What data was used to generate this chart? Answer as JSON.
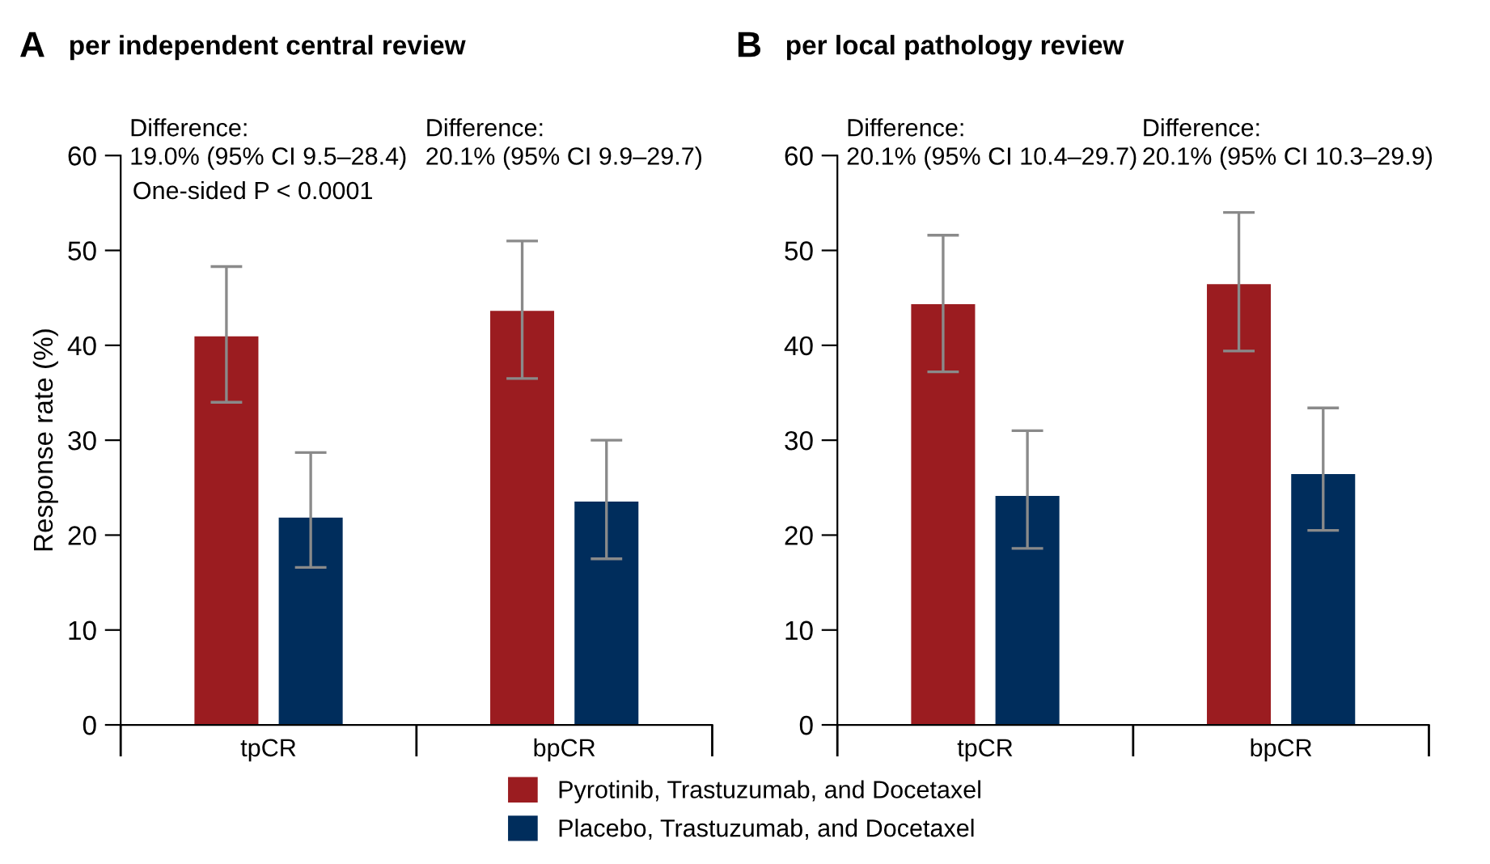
{
  "chart_data": [
    {
      "type": "bar",
      "title": "per independent central review",
      "ylabel": "Response rate (%)",
      "annotations": [
        "A",
        "Difference:\n19.0% (95% CI 9.5–28.4)",
        "Difference:\n20.1% (95% CI 9.9–29.7)",
        "One-sided P < 0.0001"
      ],
      "categories": [
        "tpCR",
        "bpCR"
      ],
      "series": [
        {
          "name": "Pyrotinib, Trastuzumab, and Docetaxel",
          "color": "#9b1c20",
          "values": [
            41.0,
            43.7
          ],
          "errors": [
            [
              34.0,
              48.3
            ],
            [
              36.5,
              51.0
            ]
          ]
        },
        {
          "name": "Placebo, Trastuzumab, and Docetaxel",
          "color": "#002d5c",
          "values": [
            21.9,
            23.6
          ],
          "errors": [
            [
              16.6,
              28.7
            ],
            [
              17.5,
              30.0
            ]
          ]
        }
      ],
      "ylim": [
        0,
        60
      ],
      "yticks": [
        0,
        10,
        20,
        30,
        40,
        50,
        60
      ],
      "grid": false,
      "legend": "bottom"
    },
    {
      "type": "bar",
      "title": "per local pathology review",
      "annotations": [
        "B",
        "Difference:\n20.1% (95% CI 10.4–29.7)",
        "Difference:\n20.1% (95% CI 10.3–29.9)"
      ],
      "categories": [
        "tpCR",
        "bpCR"
      ],
      "series": [
        {
          "name": "Pyrotinib, Trastuzumab, and Docetaxel",
          "color": "#9b1c20",
          "values": [
            44.4,
            46.5
          ],
          "errors": [
            [
              37.2,
              51.6
            ],
            [
              39.4,
              54.0
            ]
          ]
        },
        {
          "name": "Placebo, Trastuzumab, and Docetaxel",
          "color": "#002d5c",
          "values": [
            24.2,
            26.5
          ],
          "errors": [
            [
              18.6,
              31.0
            ],
            [
              20.5,
              33.4
            ]
          ]
        }
      ],
      "ylim": [
        0,
        60
      ],
      "yticks": [
        0,
        10,
        20,
        30,
        40,
        50,
        60
      ],
      "grid": false,
      "legend": "bottom"
    }
  ]
}
